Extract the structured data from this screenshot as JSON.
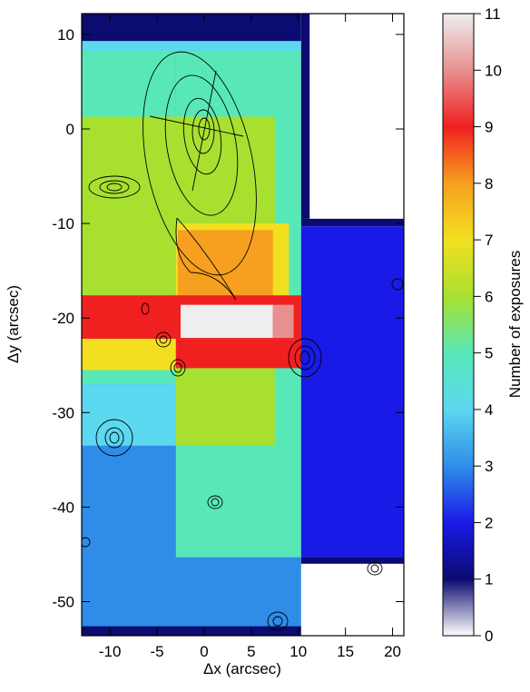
{
  "chart_data": {
    "type": "heatmap",
    "xlabel": "Δx (arcsec)",
    "ylabel": "Δy (arcsec)",
    "colorbar_label": "Number of exposures",
    "xlim": [
      -13,
      21.2
    ],
    "ylim": [
      -53.6,
      12.2
    ],
    "xticks": [
      -10,
      -5,
      0,
      5,
      10,
      15,
      20
    ],
    "yticks": [
      10,
      0,
      -10,
      -20,
      -30,
      -40,
      -50
    ],
    "clim": [
      0,
      11
    ],
    "cticks": [
      0,
      1,
      2,
      3,
      4,
      5,
      6,
      7,
      8,
      9,
      10,
      11
    ],
    "colors": [
      "#ffffff",
      "#0b0b70",
      "#1a1ae8",
      "#2f8de8",
      "#5cd8f0",
      "#58e8b8",
      "#a8e030",
      "#f2e020",
      "#f7a020",
      "#f02020",
      "#e89090",
      "#eeeeee"
    ],
    "regions": [
      {
        "x": [
          -13,
          10.3
        ],
        "y": [
          -53.6,
          12.2
        ],
        "value": 3
      },
      {
        "x": [
          -13,
          10.3
        ],
        "y": [
          -53.6,
          -52.6
        ],
        "value": 1
      },
      {
        "x": [
          -3,
          10.3
        ],
        "y": [
          -45.3,
          8.3
        ],
        "value": 5
      },
      {
        "x": [
          -13,
          -3
        ],
        "y": [
          -27,
          8.3
        ],
        "value": 5
      },
      {
        "x": [
          -13,
          -3
        ],
        "y": [
          -33.5,
          -27
        ],
        "value": 4
      },
      {
        "x": [
          -13,
          10.3
        ],
        "y": [
          9.3,
          12.2
        ],
        "value": 1
      },
      {
        "x": [
          -13,
          10.3
        ],
        "y": [
          8.3,
          9.3
        ],
        "value": 4
      },
      {
        "x": [
          -13,
          7.5
        ],
        "y": [
          -26,
          1.3
        ],
        "value": 6
      },
      {
        "x": [
          -3,
          7.5
        ],
        "y": [
          -33.5,
          -26
        ],
        "value": 6
      },
      {
        "x": [
          -3,
          9
        ],
        "y": [
          -18,
          -10
        ],
        "value": 7
      },
      {
        "x": [
          -2.8,
          7.3
        ],
        "y": [
          -17.8,
          -10.7
        ],
        "value": 8
      },
      {
        "x": [
          -13,
          10.3
        ],
        "y": [
          -22.2,
          -17.6
        ],
        "value": 9
      },
      {
        "x": [
          -2.5,
          7.3
        ],
        "y": [
          -22.1,
          -18.6
        ],
        "value": 11
      },
      {
        "x": [
          7.3,
          9.5
        ],
        "y": [
          -22.1,
          -18.6
        ],
        "value": 10
      },
      {
        "x": [
          -13,
          -3
        ],
        "y": [
          -25.5,
          -22.2
        ],
        "value": 7
      },
      {
        "x": [
          -3,
          10.3
        ],
        "y": [
          -25.3,
          -22.2
        ],
        "value": 9
      },
      {
        "x": [
          -13,
          -3
        ],
        "y": [
          -26.3,
          -25.5
        ],
        "value": 5
      },
      {
        "x": [
          10.3,
          21.2
        ],
        "y": [
          -9.5,
          12.2
        ],
        "value": 0
      },
      {
        "x": [
          10.3,
          11.2
        ],
        "y": [
          -9.5,
          12.2
        ],
        "value": 1
      },
      {
        "x": [
          10.3,
          21.2
        ],
        "y": [
          -10.3,
          -9.5
        ],
        "value": 1
      },
      {
        "x": [
          10.3,
          21.2
        ],
        "y": [
          -45.3,
          -10.3
        ],
        "value": 2
      },
      {
        "x": [
          10.3,
          21.2
        ],
        "y": [
          -46,
          -45.3
        ],
        "value": 1
      },
      {
        "x": [
          10.3,
          21.2
        ],
        "y": [
          -53.6,
          -46
        ],
        "value": 0
      }
    ]
  }
}
